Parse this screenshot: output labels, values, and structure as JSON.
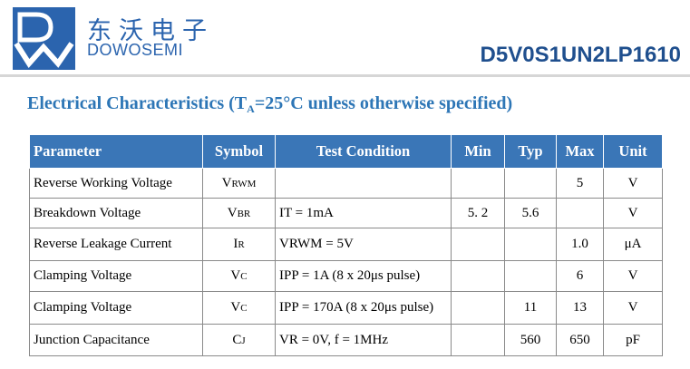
{
  "header": {
    "brand_cn": "东沃电子",
    "brand_en": "DOWOSEMI",
    "part_number": "D5V0S1UN2LP1610",
    "logo_icon": "dowosemi-logo-icon",
    "brand_color": "#2b64ae"
  },
  "section": {
    "title_prefix": "Electrical Characteristics (T",
    "title_sub": "A",
    "title_suffix": "=25°C unless otherwise specified)",
    "title_color": "#2d76b6"
  },
  "table": {
    "header_color": "#3a76b7",
    "columns": [
      "Parameter",
      "Symbol",
      "Test Condition",
      "Min",
      "Typ",
      "Max",
      "Unit"
    ],
    "rows": [
      {
        "parameter": "Reverse Working Voltage",
        "sym_main": "V",
        "sym_sub": "RWM",
        "condition": "",
        "min": "",
        "typ": "",
        "max": "5",
        "unit": "V"
      },
      {
        "parameter": "Breakdown Voltage",
        "sym_main": "V",
        "sym_sub": "BR",
        "condition": "IT = 1mA",
        "min": "5. 2",
        "typ": "5.6",
        "max": "",
        "unit": "V"
      },
      {
        "parameter": "Reverse Leakage Current",
        "sym_main": "I",
        "sym_sub": "R",
        "condition": "VRWM = 5V",
        "min": "",
        "typ": "",
        "max": "1.0",
        "unit": "μA"
      },
      {
        "parameter": "Clamping Voltage",
        "sym_main": "V",
        "sym_sub": "C",
        "condition": "IPP = 1A (8 x 20μs pulse)",
        "min": "",
        "typ": "",
        "max": "6",
        "unit": "V"
      },
      {
        "parameter": "Clamping Voltage",
        "sym_main": "V",
        "sym_sub": "C",
        "condition": "IPP = 170A (8 x 20μs pulse)",
        "min": "",
        "typ": "11",
        "max": "13",
        "unit": "V"
      },
      {
        "parameter": "Junction Capacitance",
        "sym_main": "C",
        "sym_sub": "J",
        "condition": "VR = 0V, f = 1MHz",
        "min": "",
        "typ": "560",
        "max": "650",
        "unit": "pF"
      }
    ]
  }
}
